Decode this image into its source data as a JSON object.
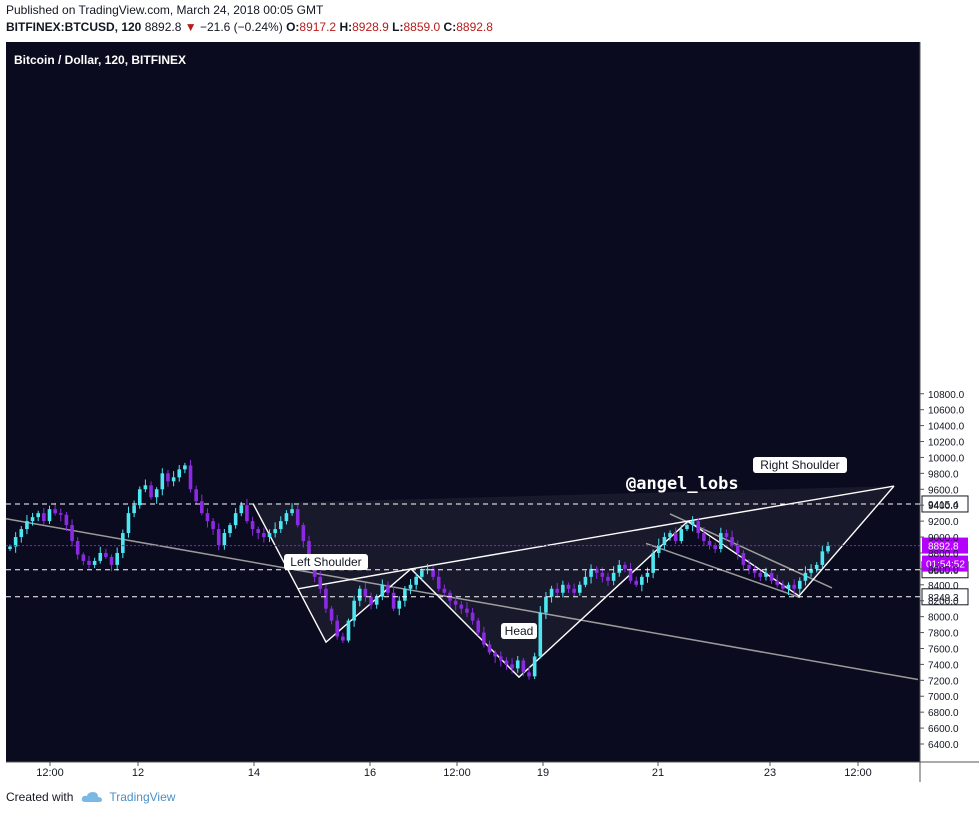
{
  "header": {
    "published": "Published on TradingView.com, March 24, 2018 00:05 GMT",
    "symbol": "BITFINEX:BTCUSD, 120",
    "last": "8892.8",
    "change": "⋯21.6 (−0.24%)",
    "o_label": "O:",
    "o": "8917.2",
    "h_label": "H:",
    "h": "8928.9",
    "l_label": "L:",
    "l": "8859.0",
    "c_label": "C:",
    "c": "8892.8"
  },
  "footer": {
    "created_with": "Created with",
    "brand": "TradingView"
  },
  "colors": {
    "background": "#0b0b1f",
    "bull": "#4ee6f0",
    "bear": "#8a2be2",
    "pattern": "#ffffff",
    "price_label": "#b400ff"
  },
  "chart_data": {
    "type": "candlestick",
    "title": "Bitcoin / Dollar, 120, BITFINEX",
    "watermark": "@angel_lobs",
    "y_ticks": [
      "10800.0",
      "10600.0",
      "10400.0",
      "10200.0",
      "10000.0",
      "9800.0",
      "9600.0",
      "9400.0",
      "9200.0",
      "9000.0",
      "8800.0",
      "8600.0",
      "8400.0",
      "8200.0",
      "8000.0",
      "7800.0",
      "7600.0",
      "7400.0",
      "7200.0",
      "7000.0",
      "6800.0",
      "6600.0",
      "6400.0"
    ],
    "ylim": [
      6350,
      10900
    ],
    "x_ticks": [
      "12:00",
      "12",
      "14",
      "16",
      "12:00",
      "19",
      "21",
      "23",
      "12:00"
    ],
    "price_levels": [
      {
        "value": 9415.4,
        "label": "9415.4",
        "style": "dashed"
      },
      {
        "value": 8589.0,
        "label": "8589.0",
        "style": "dashed"
      },
      {
        "value": 8249.3,
        "label": "8249.3",
        "style": "dashed"
      }
    ],
    "last_price": {
      "value": 8892.8,
      "label": "8892.8",
      "countdown": "01:54:52"
    },
    "annotations": [
      "Left Shoulder",
      "Head",
      "Right Shoulder"
    ],
    "pattern_points": [
      {
        "i": 0,
        "price": 9420
      },
      {
        "i": 1,
        "price": 8350
      },
      {
        "i": 2,
        "price": 7680
      },
      {
        "i": 3,
        "price": 8600
      },
      {
        "i": 4,
        "price": 7240
      },
      {
        "i": 5,
        "price": 9200
      },
      {
        "i": 6,
        "price": 8260
      },
      {
        "i": 7,
        "price": 9640
      }
    ],
    "closes": [
      8880,
      9000,
      9100,
      9200,
      9250,
      9300,
      9200,
      9350,
      9300,
      9280,
      9150,
      8950,
      8780,
      8700,
      8650,
      8700,
      8800,
      8750,
      8650,
      8800,
      9050,
      9300,
      9400,
      9600,
      9650,
      9500,
      9600,
      9800,
      9700,
      9750,
      9850,
      9900,
      9600,
      9450,
      9300,
      9200,
      9100,
      8900,
      9050,
      9150,
      9300,
      9400,
      9200,
      9100,
      9050,
      9000,
      9050,
      9100,
      9200,
      9300,
      9350,
      9150,
      8950,
      8650,
      8500,
      8350,
      8100,
      7950,
      7750,
      7700,
      7950,
      8200,
      8350,
      8250,
      8150,
      8250,
      8400,
      8300,
      8100,
      8200,
      8350,
      8400,
      8500,
      8580,
      8600,
      8500,
      8350,
      8300,
      8200,
      8150,
      8100,
      8050,
      7950,
      7800,
      7650,
      7550,
      7500,
      7450,
      7400,
      7350,
      7450,
      7300,
      7250,
      7500,
      8050,
      8250,
      8350,
      8300,
      8400,
      8350,
      8300,
      8400,
      8500,
      8600,
      8550,
      8500,
      8450,
      8550,
      8650,
      8600,
      8450,
      8400,
      8500,
      8550,
      8800,
      8900,
      9000,
      9050,
      8950,
      9100,
      9150,
      9200,
      9050,
      8950,
      8900,
      8850,
      9050,
      9000,
      8900,
      8800,
      8650,
      8600,
      8550,
      8500,
      8550,
      8450,
      8400,
      8350,
      8400,
      8350,
      8450,
      8550,
      8600,
      8650,
      8820,
      8890
    ]
  }
}
